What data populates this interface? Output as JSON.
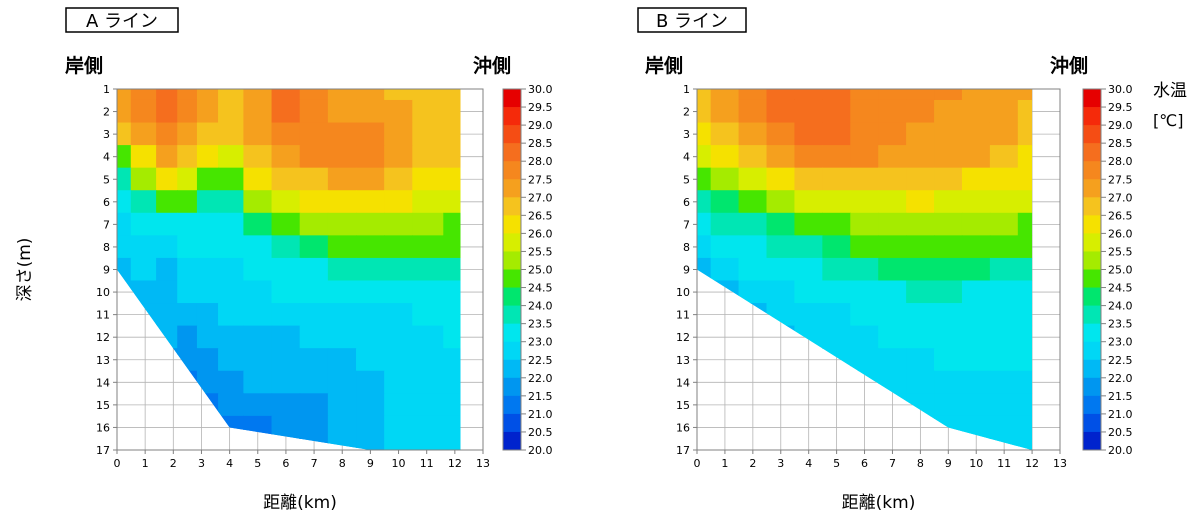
{
  "chart_data": [
    {
      "type": "heatmap",
      "title": "A ライン",
      "shore_label": "岸側",
      "offshore_label": "沖側",
      "xlabel": "距離(km)",
      "ylabel": "深さ(m)",
      "xlim": [
        0,
        13
      ],
      "ylim": [
        1,
        17
      ],
      "x_ticks": [
        0,
        1,
        2,
        3,
        4,
        5,
        6,
        7,
        8,
        9,
        10,
        11,
        12,
        13
      ],
      "y_ticks": [
        1,
        2,
        3,
        4,
        5,
        6,
        7,
        8,
        9,
        10,
        11,
        12,
        13,
        14,
        15,
        16,
        17
      ],
      "grid": true,
      "seabed": [
        [
          0,
          9
        ],
        [
          4,
          16
        ],
        [
          9,
          17
        ],
        [
          12.2,
          17
        ]
      ],
      "x": [
        0,
        1,
        1.8,
        2.5,
        3.2,
        4,
        5,
        6,
        7,
        8,
        9,
        10,
        11,
        12.2
      ],
      "depths": [
        1,
        2,
        3,
        4,
        5,
        6,
        7,
        8,
        9,
        10,
        11,
        12,
        13,
        14,
        15,
        16,
        17
      ],
      "temperature": [
        [
          27.5,
          28.0,
          28.5,
          28.0,
          27.5,
          27.0,
          27.5,
          28.5,
          28.0,
          27.5,
          27.5,
          27.0,
          27.0,
          27.0
        ],
        [
          27.5,
          28.0,
          28.5,
          28.0,
          27.5,
          27.0,
          27.5,
          28.5,
          28.0,
          27.5,
          27.5,
          27.5,
          27.0,
          27.0
        ],
        [
          27.0,
          27.5,
          28.0,
          27.5,
          27.0,
          27.0,
          27.5,
          28.0,
          28.0,
          28.0,
          28.0,
          27.5,
          27.0,
          27.0
        ],
        [
          25.0,
          26.5,
          27.5,
          27.0,
          26.5,
          26.0,
          27.0,
          27.5,
          28.0,
          28.0,
          28.0,
          27.5,
          27.0,
          27.0
        ],
        [
          24.0,
          25.5,
          26.5,
          26.0,
          25.0,
          25.0,
          26.5,
          27.0,
          27.0,
          27.5,
          27.5,
          27.0,
          26.5,
          26.5
        ],
        [
          23.5,
          24.0,
          25.0,
          25.0,
          24.0,
          24.0,
          25.5,
          26.0,
          26.5,
          26.5,
          26.5,
          26.5,
          26.0,
          26.0
        ],
        [
          23.0,
          23.5,
          23.5,
          23.5,
          23.5,
          23.5,
          24.5,
          25.0,
          25.5,
          25.5,
          25.5,
          25.5,
          25.5,
          25.0
        ],
        [
          23.0,
          23.0,
          23.0,
          23.5,
          23.5,
          23.5,
          23.5,
          24.0,
          24.5,
          25.0,
          25.0,
          25.0,
          25.0,
          25.0
        ],
        [
          22.5,
          23.0,
          22.5,
          23.0,
          23.0,
          23.0,
          23.5,
          23.5,
          23.5,
          24.0,
          24.0,
          24.0,
          24.0,
          24.0
        ],
        [
          22.5,
          22.5,
          22.5,
          23.0,
          23.0,
          23.0,
          23.0,
          23.5,
          23.5,
          23.5,
          23.5,
          23.5,
          23.5,
          23.5
        ],
        [
          22.5,
          22.5,
          22.5,
          22.5,
          22.5,
          23.0,
          23.0,
          23.0,
          23.0,
          23.0,
          23.0,
          23.0,
          23.5,
          23.5
        ],
        [
          22.5,
          22.5,
          22.5,
          22.0,
          22.5,
          22.5,
          22.5,
          22.5,
          23.0,
          23.0,
          23.0,
          23.0,
          23.0,
          23.5
        ],
        [
          22.0,
          22.0,
          22.0,
          22.0,
          22.0,
          22.5,
          22.5,
          22.5,
          22.5,
          22.5,
          23.0,
          23.0,
          23.0,
          23.0
        ],
        [
          22.0,
          22.0,
          22.0,
          21.5,
          22.0,
          22.0,
          22.5,
          22.5,
          22.5,
          22.5,
          22.5,
          23.0,
          23.0,
          23.0
        ],
        [
          21.5,
          21.5,
          21.5,
          21.5,
          21.5,
          22.0,
          22.0,
          22.0,
          22.0,
          22.5,
          22.5,
          23.0,
          23.0,
          23.0
        ],
        [
          21.5,
          21.5,
          21.5,
          21.5,
          21.5,
          21.5,
          21.5,
          22.0,
          22.0,
          22.5,
          22.5,
          23.0,
          23.0,
          23.0
        ],
        [
          21.5,
          21.5,
          21.5,
          21.5,
          21.5,
          21.5,
          21.5,
          22.0,
          22.0,
          22.5,
          22.5,
          23.0,
          23.0,
          23.0
        ]
      ]
    },
    {
      "type": "heatmap",
      "title": "B ライン",
      "shore_label": "岸側",
      "offshore_label": "沖側",
      "xlabel": "距離(km)",
      "ylabel": "",
      "xlim": [
        0,
        13
      ],
      "ylim": [
        1,
        17
      ],
      "x_ticks": [
        0,
        1,
        2,
        3,
        4,
        5,
        6,
        7,
        8,
        9,
        10,
        11,
        12,
        13
      ],
      "y_ticks": [
        1,
        2,
        3,
        4,
        5,
        6,
        7,
        8,
        9,
        10,
        11,
        12,
        13,
        14,
        15,
        16,
        17
      ],
      "grid": true,
      "seabed": [
        [
          0,
          9
        ],
        [
          9,
          16
        ],
        [
          12,
          17
        ]
      ],
      "x": [
        0,
        1,
        2,
        3,
        4,
        5,
        6,
        7,
        8,
        9,
        10,
        11,
        12
      ],
      "depths": [
        1,
        2,
        3,
        4,
        5,
        6,
        7,
        8,
        9,
        10,
        11,
        12,
        13,
        14,
        15,
        16,
        17
      ],
      "temperature": [
        [
          27.0,
          27.5,
          28.0,
          28.5,
          28.5,
          28.5,
          28.0,
          28.0,
          28.0,
          28.0,
          27.5,
          27.5,
          27.5
        ],
        [
          27.0,
          27.5,
          28.0,
          28.5,
          28.5,
          28.5,
          28.0,
          28.0,
          28.0,
          27.5,
          27.5,
          27.5,
          27.0
        ],
        [
          26.5,
          27.0,
          27.5,
          28.0,
          28.5,
          28.5,
          28.0,
          28.0,
          27.5,
          27.5,
          27.5,
          27.5,
          27.0
        ],
        [
          26.0,
          26.5,
          27.0,
          27.5,
          28.0,
          28.0,
          28.0,
          27.5,
          27.5,
          27.5,
          27.5,
          27.0,
          26.5
        ],
        [
          25.0,
          25.5,
          26.0,
          26.5,
          27.0,
          27.0,
          27.0,
          27.0,
          27.0,
          27.0,
          26.5,
          26.5,
          26.5
        ],
        [
          24.0,
          24.5,
          25.0,
          25.5,
          26.0,
          26.0,
          26.0,
          26.0,
          26.5,
          26.0,
          26.0,
          26.0,
          26.0
        ],
        [
          23.5,
          24.0,
          24.0,
          24.5,
          25.0,
          25.0,
          25.5,
          25.5,
          25.5,
          25.5,
          25.5,
          25.5,
          25.0
        ],
        [
          23.0,
          23.5,
          23.5,
          24.0,
          24.0,
          24.5,
          25.0,
          25.0,
          25.0,
          25.0,
          25.0,
          25.0,
          25.0
        ],
        [
          22.5,
          23.0,
          23.5,
          23.5,
          23.5,
          24.0,
          24.0,
          24.5,
          24.5,
          24.5,
          24.5,
          24.0,
          24.0
        ],
        [
          22.5,
          22.5,
          23.0,
          23.0,
          23.5,
          23.5,
          23.5,
          23.5,
          24.0,
          24.0,
          23.5,
          23.5,
          23.5
        ],
        [
          22.5,
          22.5,
          22.5,
          23.0,
          23.0,
          23.0,
          23.5,
          23.5,
          23.5,
          23.5,
          23.5,
          23.5,
          23.5
        ],
        [
          22.5,
          22.5,
          22.5,
          22.5,
          23.0,
          23.0,
          23.0,
          23.5,
          23.5,
          23.5,
          23.5,
          23.5,
          23.5
        ],
        [
          22.5,
          22.5,
          22.5,
          22.5,
          22.5,
          23.0,
          23.0,
          23.0,
          23.0,
          23.5,
          23.5,
          23.5,
          23.5
        ],
        [
          22.5,
          22.5,
          22.5,
          22.5,
          22.5,
          22.5,
          23.0,
          23.0,
          23.0,
          23.0,
          23.0,
          23.0,
          23.0
        ],
        [
          22.5,
          22.5,
          22.5,
          22.5,
          22.5,
          22.5,
          22.5,
          23.0,
          23.0,
          23.0,
          23.0,
          23.0,
          23.0
        ],
        [
          22.5,
          22.5,
          22.5,
          22.5,
          22.5,
          22.5,
          22.5,
          22.5,
          23.0,
          23.0,
          23.0,
          23.0,
          23.0
        ],
        [
          22.5,
          22.5,
          22.5,
          22.5,
          22.5,
          22.5,
          22.5,
          22.5,
          22.5,
          23.0,
          23.0,
          23.0,
          23.0
        ]
      ]
    }
  ],
  "colorbar": {
    "title_line1": "水温",
    "title_line2": "[℃]",
    "ticks": [
      "30.0",
      "29.5",
      "29.0",
      "28.5",
      "28.0",
      "27.5",
      "27.0",
      "26.5",
      "26.0",
      "25.5",
      "25.0",
      "24.5",
      "24.0",
      "23.5",
      "23.0",
      "22.5",
      "22.0",
      "21.5",
      "21.0",
      "20.5",
      "20.0"
    ],
    "colors": [
      "#e60000",
      "#f52a0a",
      "#f54d14",
      "#f56e1e",
      "#f5871e",
      "#f5a01e",
      "#f5c31e",
      "#f5e100",
      "#d7ee00",
      "#a5eb00",
      "#46e600",
      "#00e66e",
      "#00e6b4",
      "#00e6ee",
      "#00d7f5",
      "#00b9f5",
      "#0096f0",
      "#0078f0",
      "#0050e6",
      "#0023cd"
    ]
  }
}
